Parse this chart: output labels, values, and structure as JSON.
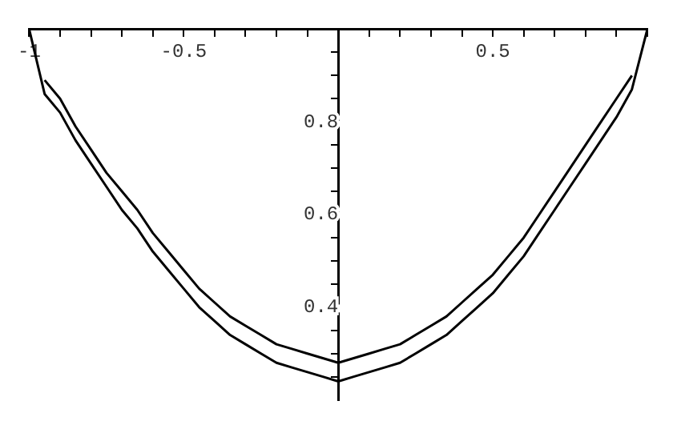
{
  "chart_data": {
    "type": "line",
    "x": [
      -1,
      -0.95,
      -0.9,
      -0.85,
      -0.8,
      -0.75,
      -0.7,
      -0.65,
      -0.6,
      -0.55,
      -0.5,
      -0.45,
      -0.4,
      -0.35,
      -0.3,
      -0.25,
      -0.2,
      -0.15,
      -0.1,
      -0.05,
      0,
      0.05,
      0.1,
      0.15,
      0.2,
      0.25,
      0.3,
      0.35,
      0.4,
      0.45,
      0.5,
      0.55,
      0.6,
      0.65,
      0.7,
      0.75,
      0.8,
      0.85,
      0.9,
      0.95,
      1
    ],
    "series": [
      {
        "color": "#000000",
        "values": [
          1.0,
          0.86,
          0.82,
          0.76,
          0.71,
          0.66,
          0.61,
          0.57,
          0.52,
          0.48,
          0.44,
          0.4,
          0.37,
          0.34,
          0.32,
          0.3,
          0.28,
          0.27,
          0.26,
          0.25,
          0.24,
          0.25,
          0.26,
          0.27,
          0.28,
          0.3,
          0.32,
          0.34,
          0.37,
          0.4,
          0.43,
          0.47,
          0.51,
          0.56,
          0.61,
          0.66,
          0.71,
          0.76,
          0.81,
          0.87,
          1.0
        ]
      },
      {
        "color": "#000000",
        "x": [
          -0.95,
          -0.9,
          -0.85,
          -0.8,
          -0.75,
          -0.7,
          -0.65,
          -0.6,
          -0.55,
          -0.5,
          -0.45,
          -0.4,
          -0.35,
          -0.3,
          -0.25,
          -0.2,
          -0.15,
          -0.1,
          -0.05,
          0,
          0.05,
          0.1,
          0.15,
          0.2,
          0.25,
          0.3,
          0.35,
          0.4,
          0.45,
          0.5,
          0.55,
          0.6,
          0.65,
          0.7,
          0.75,
          0.8,
          0.85,
          0.9,
          0.95
        ],
        "values": [
          0.89,
          0.85,
          0.79,
          0.74,
          0.69,
          0.65,
          0.61,
          0.56,
          0.52,
          0.48,
          0.44,
          0.41,
          0.38,
          0.36,
          0.34,
          0.32,
          0.31,
          0.3,
          0.29,
          0.28,
          0.29,
          0.3,
          0.31,
          0.32,
          0.34,
          0.36,
          0.38,
          0.41,
          0.44,
          0.47,
          0.51,
          0.55,
          0.6,
          0.65,
          0.7,
          0.75,
          0.8,
          0.85,
          0.9
        ]
      }
    ],
    "xlim": [
      -1,
      1
    ],
    "ylim": [
      0.2,
      1
    ],
    "xticks": [
      -1,
      {
        "value": -0.9,
        "label": null
      },
      {
        "value": -0.8,
        "label": null
      },
      {
        "value": -0.7,
        "label": null
      },
      {
        "value": -0.6,
        "label": null
      },
      -0.5,
      {
        "value": -0.4,
        "label": null
      },
      {
        "value": -0.3,
        "label": null
      },
      {
        "value": -0.2,
        "label": null
      },
      {
        "value": -0.1,
        "label": null
      },
      {
        "value": 0.1,
        "label": null
      },
      {
        "value": 0.2,
        "label": null
      },
      {
        "value": 0.3,
        "label": null
      },
      {
        "value": 0.4,
        "label": null
      },
      0.5,
      {
        "value": 0.6,
        "label": null
      },
      {
        "value": 0.7,
        "label": null
      },
      {
        "value": 0.8,
        "label": null
      },
      {
        "value": 0.9,
        "label": null
      },
      {
        "value": 1,
        "label": null
      }
    ],
    "yticks": [
      {
        "value": 0.25,
        "label": null
      },
      {
        "value": 0.3,
        "label": null
      },
      {
        "value": 0.35,
        "label": null
      },
      0.4,
      {
        "value": 0.45,
        "label": null
      },
      {
        "value": 0.5,
        "label": null
      },
      {
        "value": 0.55,
        "label": null
      },
      0.6,
      {
        "value": 0.65,
        "label": null
      },
      {
        "value": 0.7,
        "label": null
      },
      {
        "value": 0.75,
        "label": null
      },
      0.8,
      {
        "value": 0.85,
        "label": null
      },
      {
        "value": 0.9,
        "label": null
      },
      {
        "value": 0.95,
        "label": null
      },
      {
        "value": 1,
        "label": null
      }
    ],
    "grid": false,
    "legend": false,
    "marker": "none",
    "line_style": "solid"
  }
}
